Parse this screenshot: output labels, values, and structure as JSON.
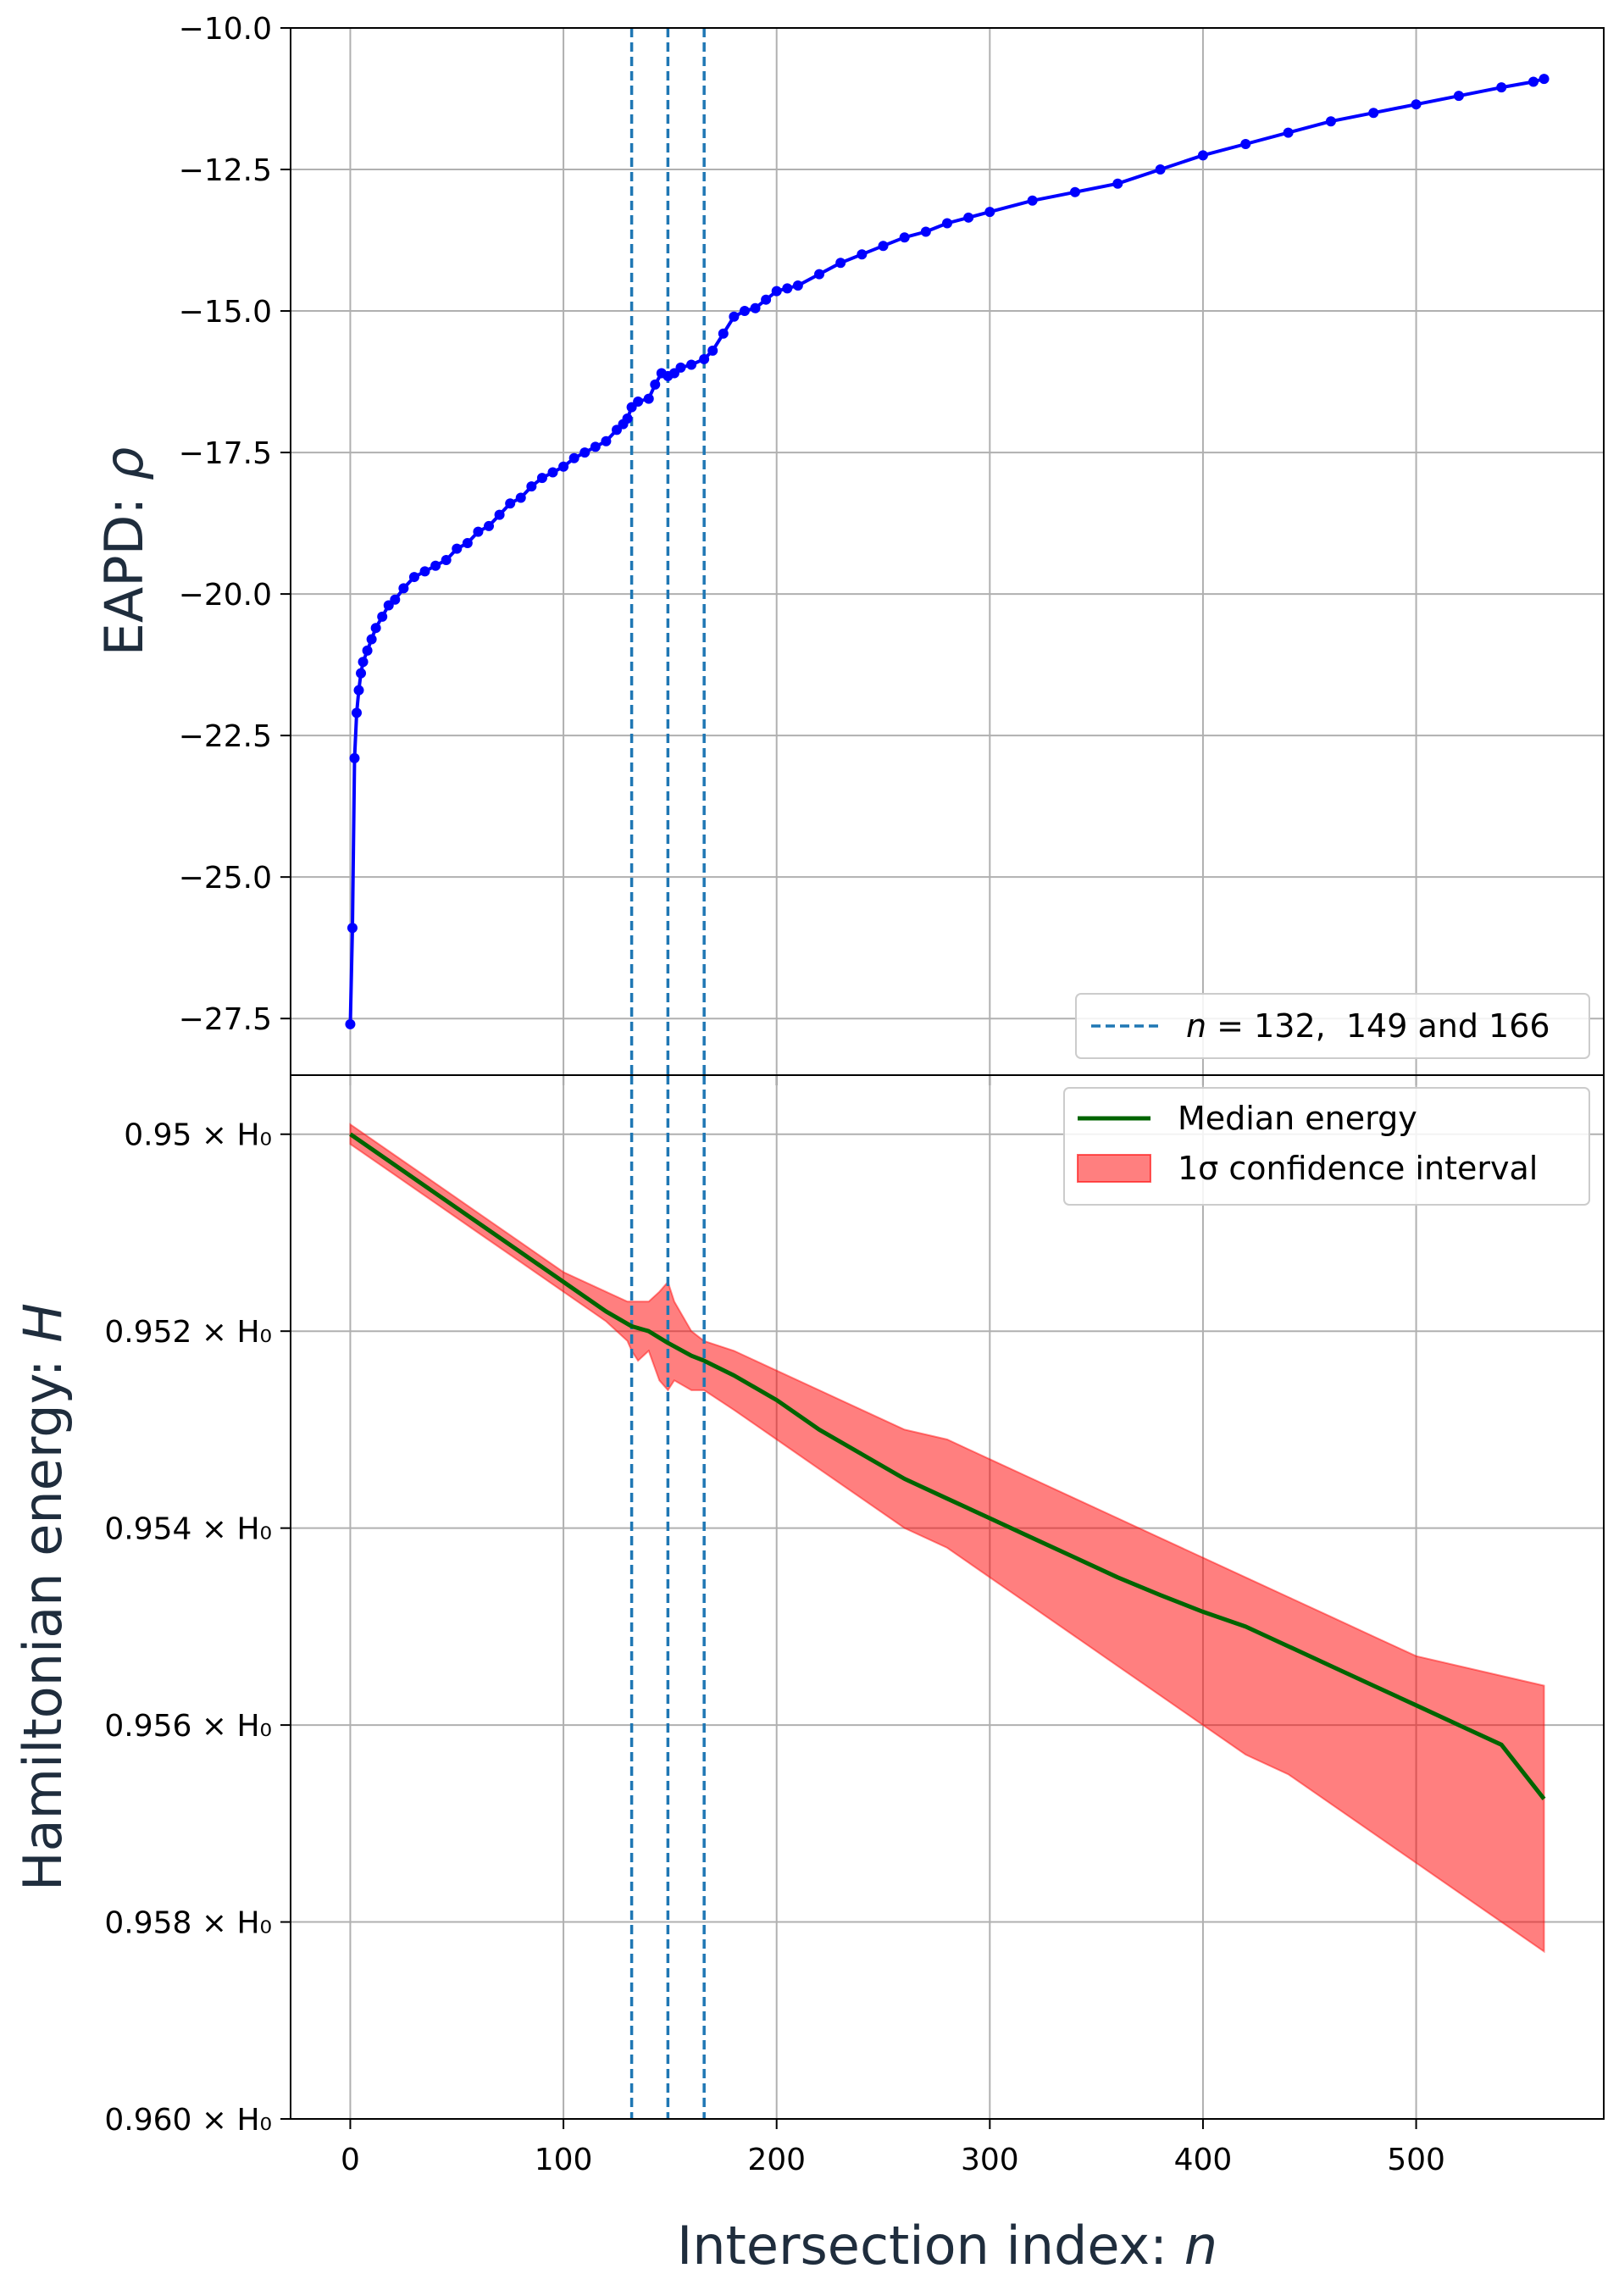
{
  "chart_data": [
    {
      "type": "line",
      "panel": "top",
      "ylabel": "EAPD: ρ",
      "xlim": [
        -28,
        588
      ],
      "ylim": [
        -28.5,
        -10.0
      ],
      "yticks": [
        -10.0,
        -12.5,
        -15.0,
        -17.5,
        -20.0,
        -22.5,
        -25.0,
        -27.5
      ],
      "ytick_labels": [
        "−10.0",
        "−12.5",
        "−15.0",
        "−17.5",
        "−20.0",
        "−22.5",
        "−25.0",
        "−27.5"
      ],
      "grid": true,
      "series": [
        {
          "role": "eapd",
          "color": "#0000ff",
          "marker": "dot",
          "x": [
            0,
            1,
            2,
            3,
            4,
            5,
            6,
            8,
            10,
            12,
            15,
            18,
            21,
            25,
            30,
            35,
            40,
            45,
            50,
            55,
            60,
            65,
            70,
            75,
            80,
            85,
            90,
            95,
            100,
            105,
            110,
            115,
            120,
            125,
            128,
            130,
            132,
            135,
            140,
            143,
            146,
            149,
            152,
            155,
            160,
            166,
            170,
            175,
            180,
            185,
            190,
            195,
            200,
            205,
            210,
            220,
            230,
            240,
            250,
            260,
            270,
            280,
            290,
            300,
            320,
            340,
            360,
            380,
            400,
            420,
            440,
            460,
            480,
            500,
            520,
            540,
            555,
            560
          ],
          "y": [
            -27.6,
            -25.9,
            -22.9,
            -22.1,
            -21.7,
            -21.4,
            -21.2,
            -21.0,
            -20.8,
            -20.6,
            -20.4,
            -20.2,
            -20.1,
            -19.9,
            -19.7,
            -19.6,
            -19.5,
            -19.4,
            -19.2,
            -19.1,
            -18.9,
            -18.8,
            -18.6,
            -18.4,
            -18.3,
            -18.1,
            -17.95,
            -17.85,
            -17.75,
            -17.6,
            -17.5,
            -17.4,
            -17.3,
            -17.1,
            -17.0,
            -16.9,
            -16.7,
            -16.6,
            -16.55,
            -16.3,
            -16.1,
            -16.15,
            -16.1,
            -16.0,
            -15.95,
            -15.85,
            -15.7,
            -15.4,
            -15.1,
            -15.0,
            -14.95,
            -14.8,
            -14.65,
            -14.6,
            -14.55,
            -14.35,
            -14.15,
            -14.0,
            -13.85,
            -13.7,
            -13.6,
            -13.45,
            -13.35,
            -13.25,
            -13.05,
            -12.9,
            -12.75,
            -12.5,
            -12.25,
            -12.05,
            -11.85,
            -11.65,
            -11.5,
            -11.35,
            -11.2,
            -11.05,
            -10.95,
            -10.9
          ]
        },
        {
          "name": "n = 132, 149 and 166",
          "role": "vlines",
          "color": "#1f77b4",
          "style": "dashed",
          "x": [
            132,
            149,
            166
          ]
        }
      ],
      "legend": {
        "position": "lower-right",
        "label_prefix": "n",
        "label_rest": " = 132,  149 and 166"
      }
    },
    {
      "type": "area",
      "panel": "bottom",
      "xlabel": "Intersection index: n",
      "ylabel": "Hamiltonian energy: H",
      "xlim": [
        -28,
        588
      ],
      "ylim": [
        0.9494,
        0.96
      ],
      "yaxis_inverted": true,
      "yticks": [
        0.95,
        0.952,
        0.954,
        0.956,
        0.958,
        0.96
      ],
      "ytick_labels": [
        "0.95 × H₀",
        "0.952 × H₀",
        "0.954 × H₀",
        "0.956 × H₀",
        "0.958 × H₀",
        "0.960 × H₀"
      ],
      "xticks": [
        0,
        100,
        200,
        300,
        400,
        500
      ],
      "xtick_labels": [
        "0",
        "100",
        "200",
        "300",
        "400",
        "500"
      ],
      "grid": true,
      "series": [
        {
          "name": "Median energy",
          "role": "median",
          "color": "#006400",
          "x": [
            0,
            20,
            40,
            60,
            80,
            100,
            120,
            132,
            140,
            149,
            160,
            166,
            180,
            200,
            220,
            240,
            260,
            280,
            300,
            320,
            340,
            360,
            380,
            400,
            420,
            440,
            460,
            480,
            500,
            520,
            540,
            560
          ],
          "y": [
            0.95,
            0.9503,
            0.9506,
            0.9509,
            0.9512,
            0.9515,
            0.9518,
            0.95195,
            0.952,
            0.95212,
            0.95225,
            0.9523,
            0.95245,
            0.9527,
            0.953,
            0.95325,
            0.9535,
            0.9537,
            0.9539,
            0.9541,
            0.9543,
            0.9545,
            0.95468,
            0.95485,
            0.955,
            0.9552,
            0.9554,
            0.9556,
            0.9558,
            0.956,
            0.9562,
            0.95675
          ]
        },
        {
          "name": "1σ confidence interval",
          "role": "band",
          "color": "#ff0000",
          "x": [
            0,
            20,
            40,
            60,
            80,
            100,
            120,
            130,
            132,
            135,
            140,
            145,
            149,
            152,
            160,
            166,
            180,
            200,
            220,
            240,
            260,
            280,
            300,
            320,
            340,
            360,
            380,
            400,
            420,
            440,
            460,
            480,
            500,
            520,
            540,
            560
          ],
          "lower": [
            0.9499,
            0.9502,
            0.9505,
            0.9508,
            0.9511,
            0.9514,
            0.9516,
            0.9517,
            0.9517,
            0.9517,
            0.9517,
            0.9516,
            0.9515,
            0.9517,
            0.952,
            0.9521,
            0.9522,
            0.9524,
            0.9526,
            0.9528,
            0.953,
            0.9531,
            0.9533,
            0.9535,
            0.9537,
            0.9539,
            0.9541,
            0.9543,
            0.9545,
            0.9547,
            0.9549,
            0.9551,
            0.9553,
            0.9554,
            0.9555,
            0.9556
          ],
          "upper": [
            0.9501,
            0.9504,
            0.9507,
            0.951,
            0.9513,
            0.9516,
            0.9519,
            0.9521,
            0.9522,
            0.9523,
            0.9522,
            0.9525,
            0.9526,
            0.9525,
            0.9526,
            0.9526,
            0.9528,
            0.9531,
            0.9534,
            0.9537,
            0.954,
            0.9542,
            0.9545,
            0.9548,
            0.9551,
            0.9554,
            0.9557,
            0.956,
            0.9563,
            0.9565,
            0.9568,
            0.9571,
            0.9574,
            0.9577,
            0.958,
            0.9583
          ]
        },
        {
          "role": "vlines",
          "color": "#1f77b4",
          "style": "dashed",
          "x": [
            132,
            149,
            166
          ]
        }
      ],
      "legend": {
        "position": "top-right",
        "entries": [
          "Median energy",
          "1σ confidence interval"
        ]
      }
    }
  ]
}
